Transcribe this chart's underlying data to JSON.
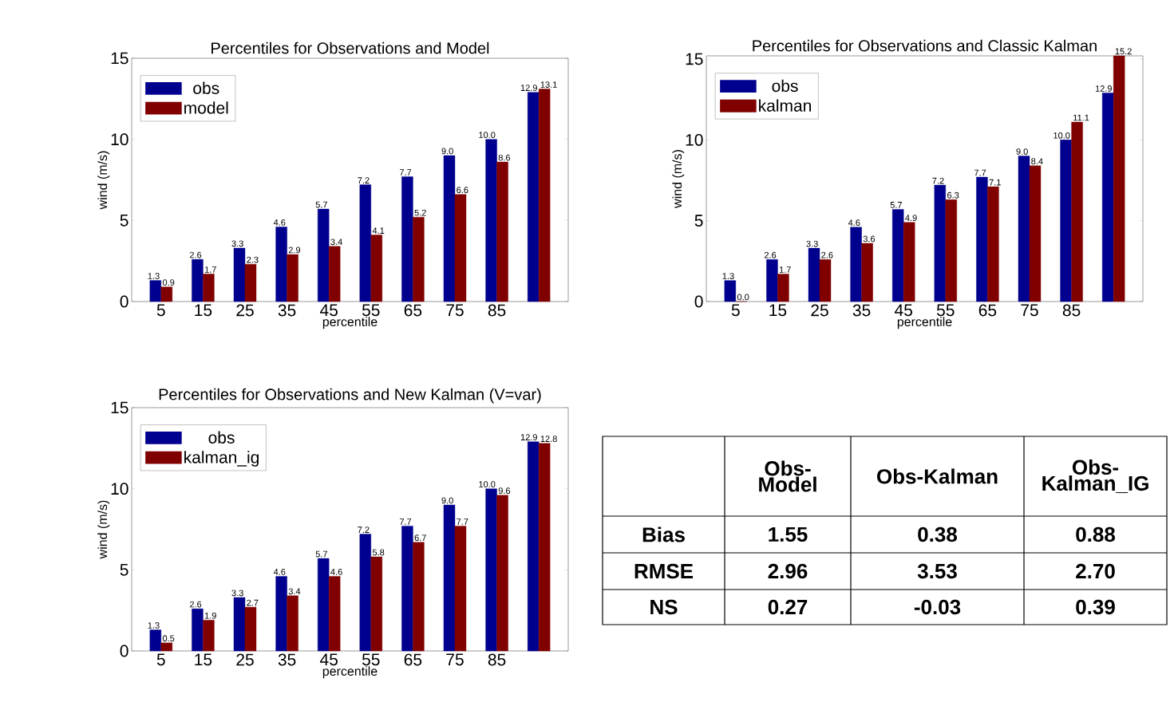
{
  "chart_data": [
    {
      "type": "bar",
      "title": "Percentiles for Observations and Model",
      "xlabel": "percentile",
      "ylabel": "wind (m/s)",
      "categories": [
        "5",
        "15",
        "25",
        "35",
        "45",
        "55",
        "65",
        "75",
        "85",
        null
      ],
      "series": [
        {
          "name": "obs",
          "color": "#00008f",
          "values": [
            1.3,
            2.6,
            3.3,
            4.6,
            5.7,
            7.2,
            7.7,
            9.0,
            10.0,
            12.9
          ],
          "value_labels": [
            "1.3",
            "2.6",
            "3.3",
            "4.6",
            "5.7",
            "7.2",
            "7.7",
            "9.0",
            "10.0",
            "12.9"
          ]
        },
        {
          "name": "model",
          "color": "#800000",
          "values": [
            0.9,
            1.7,
            2.3,
            2.9,
            3.4,
            4.1,
            5.2,
            6.6,
            8.6,
            13.1
          ],
          "value_labels": [
            "0.9",
            "1.7",
            "2.3",
            "2.9",
            "3.4",
            "4.1",
            "5.2",
            "6.6",
            "8.6",
            "13.1"
          ]
        }
      ],
      "ylim": [
        0,
        15
      ],
      "yticks": [
        0,
        5,
        10,
        15
      ],
      "legend": "top left"
    },
    {
      "type": "bar",
      "title": "Percentiles for Observations and Classic Kalman",
      "xlabel": "percentile",
      "ylabel": "wind (m/s)",
      "categories": [
        "5",
        "15",
        "25",
        "35",
        "45",
        "55",
        "65",
        "75",
        "85",
        null
      ],
      "series": [
        {
          "name": "obs",
          "color": "#00008f",
          "values": [
            1.3,
            2.6,
            3.3,
            4.6,
            5.7,
            7.2,
            7.7,
            9.0,
            10.0,
            12.9
          ],
          "value_labels": [
            "1.3",
            "2.6",
            "3.3",
            "4.6",
            "5.7",
            "7.2",
            "7.7",
            "9.0",
            "10.0",
            "12.9"
          ]
        },
        {
          "name": "kalman",
          "color": "#800000",
          "values": [
            0.0,
            1.7,
            2.6,
            3.6,
            4.9,
            6.3,
            7.1,
            8.4,
            11.1,
            15.2
          ],
          "value_labels": [
            "0.0",
            "1.7",
            "2.6",
            "3.6",
            "4.9",
            "6.3",
            "7.1",
            "8.4",
            "11.1",
            "15.2"
          ]
        }
      ],
      "ylim": [
        0,
        15.2
      ],
      "yticks": [
        0,
        5,
        10,
        15
      ],
      "legend": "top left"
    },
    {
      "type": "bar",
      "title": "Percentiles for Observations and New Kalman (V=var)",
      "xlabel": "percentile",
      "ylabel": "wind (m/s)",
      "categories": [
        "5",
        "15",
        "25",
        "35",
        "45",
        "55",
        "65",
        "75",
        "85",
        null
      ],
      "series": [
        {
          "name": "obs",
          "color": "#00008f",
          "values": [
            1.3,
            2.6,
            3.3,
            4.6,
            5.7,
            7.2,
            7.7,
            9.0,
            10.0,
            12.9
          ],
          "value_labels": [
            "1.3",
            "2.6",
            "3.3",
            "4.6",
            "5.7",
            "7.2",
            "7.7",
            "9.0",
            "10.0",
            "12.9"
          ]
        },
        {
          "name": "kalman_ig",
          "color": "#800000",
          "values": [
            0.5,
            1.9,
            2.7,
            3.4,
            4.6,
            5.8,
            6.7,
            7.7,
            9.6,
            12.8
          ],
          "value_labels": [
            "0.5",
            "1.9",
            "2.7",
            "3.4",
            "4.6",
            "5.8",
            "6.7",
            "7.7",
            "9.6",
            "12.8"
          ]
        }
      ],
      "ylim": [
        0,
        15
      ],
      "yticks": [
        0,
        5,
        10,
        15
      ],
      "legend": "top left"
    },
    {
      "type": "other",
      "categories": [
        "Obs-Model",
        "Obs-Kalman",
        "Obs-Kalman_IG"
      ],
      "y_categories": [
        "Bias",
        "RMSE",
        "NS"
      ],
      "cells": [
        [
          "1.55",
          "0.38",
          "0.88"
        ],
        [
          "2.96",
          "3.53",
          "2.70"
        ],
        [
          "0.27",
          "-0.03",
          "0.39"
        ]
      ]
    }
  ]
}
